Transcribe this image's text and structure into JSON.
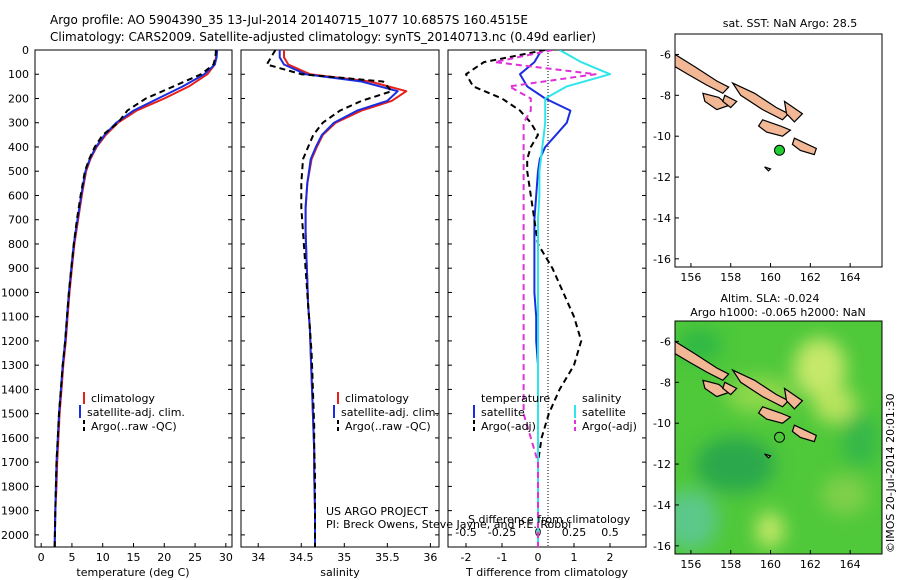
{
  "title_line1": "Argo profile: AO 5904390_35 13-Jul-2014 20140715_1077 10.6857S 160.4515E",
  "title_line2": "Climatology: CARS2009. Satellite-adjusted climatology: synTS_20140713.nc (0.49d earlier)",
  "colors": {
    "climatology": "#e8201a",
    "satellite_clim": "#1a2ee0",
    "argo": "#000000",
    "sat_salinity": "#2ee6ea",
    "argo_salinity": "#e030d8",
    "land": "#f2b895",
    "marker_green": "#22cc33"
  },
  "depth_axis": {
    "ticks": [
      "0",
      "100",
      "200",
      "300",
      "400",
      "500",
      "600",
      "700",
      "800",
      "900",
      "1000",
      "1100",
      "1200",
      "1300",
      "1400",
      "1500",
      "1600",
      "1700",
      "1800",
      "1900",
      "2000"
    ]
  },
  "panels": {
    "temperature": {
      "xlabel": "temperature (deg C)",
      "xticks": [
        "0",
        "5",
        "10",
        "15",
        "20",
        "25",
        "30"
      ],
      "legend": [
        "climatology",
        "satellite-adj. clim.",
        "Argo(..raw -QC)"
      ]
    },
    "salinity": {
      "xlabel": "salinity",
      "xticks": [
        "34",
        "34.5",
        "35",
        "35.5",
        "36"
      ],
      "legend": [
        "climatology",
        "satellite-adj. clim.",
        "Argo(..raw -QC)"
      ],
      "credit_line1": "US ARGO PROJECT",
      "credit_line2": "PI: Breck Owens, Steve Jayne, and P.E. Robbi"
    },
    "difference": {
      "xlabel": "T difference from climatology",
      "top_label": "S difference from climatology",
      "xticks_bottom": [
        "-2",
        "-1",
        "0",
        "1",
        "2"
      ],
      "xticks_top": [
        "-0.5",
        "-0.25",
        "0",
        "0.25",
        "0.5"
      ],
      "legend_temperature_title": "temperature",
      "legend_salinity_title": "salinity",
      "legend_temperature": [
        "satellite",
        "Argo(-adj)"
      ],
      "legend_salinity": [
        "satellite",
        "Argo(-adj)"
      ]
    }
  },
  "maps": {
    "sst": {
      "title": "sat. SST: NaN Argo: 28.5",
      "lon_ticks": [
        "156",
        "158",
        "160",
        "162",
        "164"
      ],
      "lat_ticks": [
        "-6",
        "-8",
        "-10",
        "-12",
        "-14",
        "-16"
      ],
      "marker": {
        "lon": 160.45,
        "lat": -10.69
      }
    },
    "sla": {
      "title_line1": "Altim. SLA: -0.024",
      "title_line2": "Argo h1000: -0.065 h2000: NaN",
      "lon_ticks": [
        "156",
        "158",
        "160",
        "162",
        "164"
      ],
      "lat_ticks": [
        "-6",
        "-8",
        "-10",
        "-12",
        "-14",
        "-16"
      ],
      "marker": {
        "lon": 160.45,
        "lat": -10.69
      }
    }
  },
  "watermark": "©IMOS 20-Jul-2014 20:01:30",
  "chart_data": [
    {
      "type": "line",
      "xlabel": "temperature (deg C)",
      "ylabel": "",
      "xlim": [
        -1,
        31
      ],
      "ylim": [
        2050,
        0
      ],
      "series": [
        {
          "name": "climatology",
          "x": [
            28.5,
            28.4,
            28.2,
            27.0,
            24.0,
            20.0,
            15.5,
            12.5,
            10.5,
            9.0,
            8.0,
            7.3,
            6.6,
            6.0,
            5.4,
            5.0,
            4.6,
            4.3,
            4.0,
            3.6,
            3.3,
            3.0,
            2.8,
            2.6,
            2.5,
            2.3,
            2.2
          ],
          "y": [
            0,
            30,
            60,
            100,
            150,
            200,
            250,
            300,
            350,
            400,
            450,
            500,
            600,
            700,
            800,
            900,
            1000,
            1100,
            1200,
            1300,
            1400,
            1500,
            1600,
            1700,
            1800,
            1900,
            2050
          ]
        },
        {
          "name": "satellite-adj. clim.",
          "x": [
            28.6,
            28.5,
            28.2,
            26.5,
            23.0,
            19.0,
            15.0,
            12.2,
            10.3,
            8.9,
            7.9,
            7.2,
            6.5,
            5.9,
            5.3,
            4.9,
            4.5,
            4.2,
            3.9,
            3.5,
            3.2,
            2.9,
            2.7,
            2.5,
            2.4,
            2.3,
            2.2
          ],
          "y": [
            0,
            30,
            60,
            100,
            150,
            200,
            250,
            300,
            350,
            400,
            450,
            500,
            600,
            700,
            800,
            900,
            1000,
            1100,
            1200,
            1300,
            1400,
            1500,
            1600,
            1700,
            1800,
            1900,
            2050
          ]
        },
        {
          "name": "Argo(..raw -QC)",
          "x": [
            28.4,
            28.3,
            28.0,
            26.0,
            21.5,
            17.0,
            14.0,
            12.5,
            10.0,
            8.7,
            7.8,
            7.1,
            6.4,
            5.8,
            5.3,
            4.9,
            4.5,
            4.2,
            3.9,
            3.5,
            3.2,
            2.9,
            2.7,
            2.5,
            2.4,
            2.3,
            2.2
          ],
          "y": [
            0,
            30,
            60,
            100,
            150,
            200,
            250,
            300,
            350,
            400,
            450,
            500,
            600,
            700,
            800,
            900,
            1000,
            1100,
            1200,
            1300,
            1400,
            1500,
            1600,
            1700,
            1800,
            1900,
            2050
          ]
        }
      ]
    },
    {
      "type": "line",
      "xlabel": "salinity",
      "ylabel": "",
      "xlim": [
        33.8,
        36.1
      ],
      "ylim": [
        2050,
        0
      ],
      "series": [
        {
          "name": "climatology",
          "x": [
            34.3,
            34.3,
            34.35,
            34.6,
            35.3,
            35.72,
            35.55,
            35.2,
            34.9,
            34.75,
            34.68,
            34.62,
            34.57,
            34.55,
            34.55,
            34.56,
            34.57,
            34.58,
            34.6,
            34.61,
            34.62,
            34.63,
            34.64,
            34.65,
            34.65,
            34.66,
            34.66
          ],
          "y": [
            0,
            30,
            60,
            100,
            130,
            170,
            210,
            250,
            300,
            350,
            400,
            450,
            550,
            650,
            750,
            850,
            950,
            1050,
            1150,
            1250,
            1350,
            1450,
            1550,
            1650,
            1750,
            1900,
            2050
          ]
        },
        {
          "name": "satellite-adj. clim.",
          "x": [
            34.25,
            34.25,
            34.3,
            34.55,
            35.2,
            35.62,
            35.5,
            35.15,
            34.88,
            34.74,
            34.67,
            34.61,
            34.57,
            34.55,
            34.55,
            34.56,
            34.57,
            34.58,
            34.6,
            34.61,
            34.62,
            34.63,
            34.64,
            34.65,
            34.65,
            34.66,
            34.66
          ],
          "y": [
            0,
            30,
            60,
            100,
            130,
            170,
            210,
            250,
            300,
            350,
            400,
            450,
            550,
            650,
            750,
            850,
            950,
            1050,
            1150,
            1250,
            1350,
            1450,
            1550,
            1650,
            1750,
            1900,
            2050
          ]
        },
        {
          "name": "Argo(..raw -QC)",
          "x": [
            34.2,
            34.15,
            34.1,
            34.5,
            35.45,
            35.55,
            35.2,
            34.95,
            34.75,
            34.64,
            34.58,
            34.52,
            34.5,
            34.5,
            34.52,
            34.54,
            34.56,
            34.58,
            34.6,
            34.62,
            34.63,
            34.64,
            34.65,
            34.65,
            34.66,
            34.66,
            34.66
          ],
          "y": [
            0,
            30,
            60,
            100,
            130,
            170,
            210,
            250,
            300,
            350,
            400,
            450,
            550,
            650,
            750,
            850,
            950,
            1050,
            1150,
            1250,
            1350,
            1450,
            1550,
            1650,
            1750,
            1900,
            2050
          ]
        }
      ]
    },
    {
      "type": "line",
      "xlabel": "T difference from climatology",
      "ylabel": "",
      "xlim": [
        -2.5,
        3
      ],
      "ylim": [
        2050,
        0
      ],
      "series": [
        {
          "name": "temperature satellite",
          "x": [
            0.1,
            -0.1,
            -0.5,
            -0.3,
            0.2,
            0.9,
            0.8,
            0.5,
            0.2,
            0.05,
            0,
            -0.05,
            -0.1,
            -0.1,
            -0.1,
            -0.1,
            -0.05,
            -0.05,
            0,
            0,
            0,
            0,
            0,
            0,
            0,
            0
          ],
          "y": [
            0,
            50,
            100,
            150,
            200,
            250,
            300,
            350,
            400,
            450,
            500,
            600,
            700,
            800,
            900,
            1000,
            1100,
            1200,
            1300,
            1400,
            1500,
            1600,
            1700,
            1800,
            1900,
            2050
          ]
        },
        {
          "name": "temperature Argo(-adj)",
          "x": [
            0.2,
            -1.5,
            -2.0,
            -1.8,
            -1.0,
            -0.5,
            -0.2,
            0,
            -0.2,
            -0.3,
            -0.3,
            -0.2,
            -0.1,
            0,
            0.4,
            0.7,
            1.0,
            1.2,
            1.0,
            0.6,
            0.3,
            0.1,
            0,
            0,
            0,
            0
          ],
          "y": [
            0,
            50,
            100,
            150,
            200,
            250,
            300,
            350,
            400,
            450,
            500,
            600,
            700,
            800,
            900,
            1000,
            1100,
            1200,
            1300,
            1400,
            1500,
            1600,
            1700,
            1800,
            1900,
            2050
          ]
        },
        {
          "name": "salinity satellite",
          "x": [
            0.15,
            0.3,
            0.5,
            0.2,
            0.05,
            0.05,
            0.05,
            0.04,
            0.03,
            0.02,
            0.01,
            0.01,
            0,
            0,
            0,
            0,
            0,
            0,
            0,
            0,
            0,
            0,
            0,
            0,
            0,
            0
          ],
          "y": [
            0,
            50,
            100,
            150,
            200,
            250,
            300,
            350,
            400,
            450,
            500,
            600,
            700,
            800,
            900,
            1000,
            1100,
            1200,
            1300,
            1400,
            1500,
            1600,
            1700,
            1800,
            1900,
            2050
          ]
        },
        {
          "name": "salinity Argo(-adj)",
          "x": [
            0.1,
            -0.3,
            0.4,
            -0.2,
            -0.05,
            -0.05,
            -0.1,
            -0.1,
            -0.1,
            -0.1,
            -0.1,
            -0.1,
            -0.1,
            -0.1,
            -0.1,
            -0.1,
            -0.1,
            -0.1,
            -0.1,
            -0.1,
            -0.1,
            -0.05,
            0,
            0,
            0,
            0
          ],
          "y": [
            0,
            50,
            100,
            150,
            200,
            250,
            300,
            350,
            400,
            450,
            500,
            600,
            700,
            800,
            900,
            1000,
            1100,
            1200,
            1300,
            1400,
            1500,
            1600,
            1700,
            1800,
            1900,
            2050
          ]
        }
      ]
    }
  ]
}
